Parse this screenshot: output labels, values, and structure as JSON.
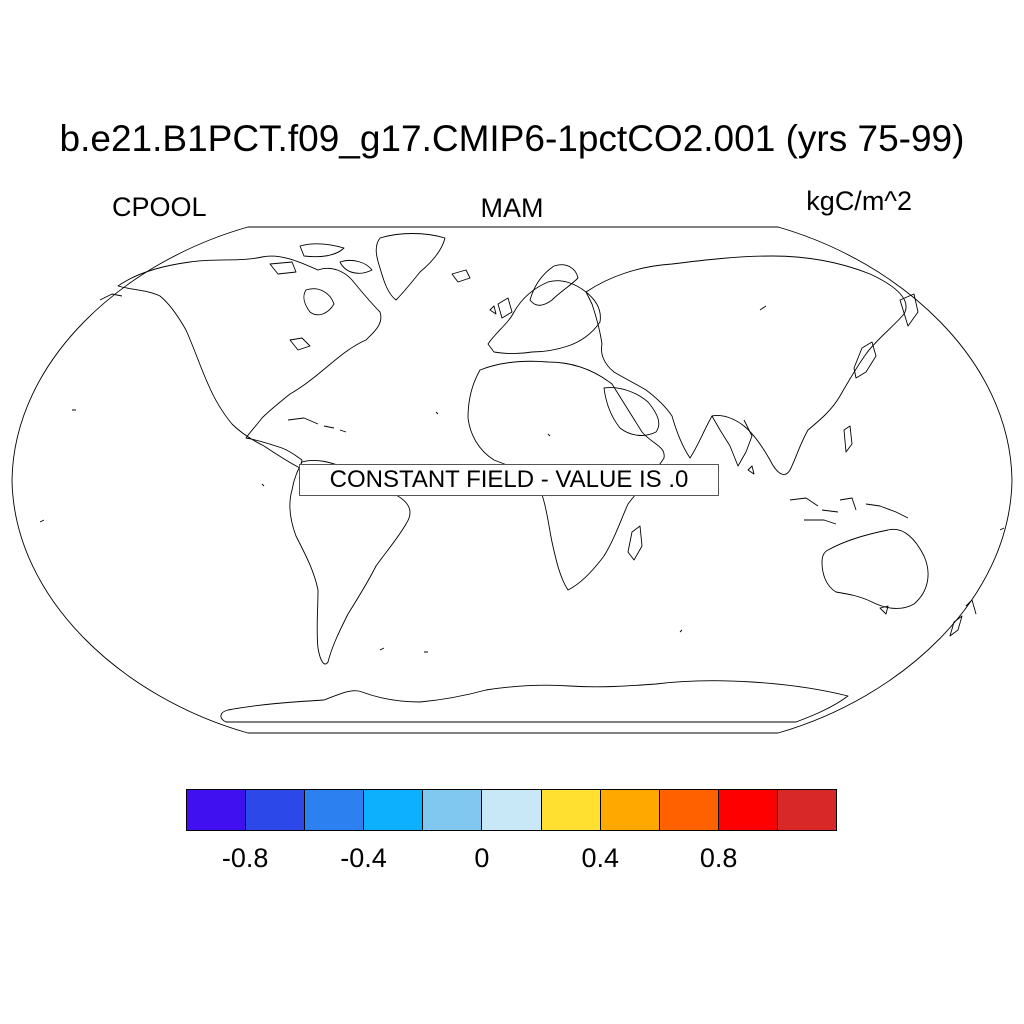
{
  "map": {
    "title": "b.e21.B1PCT.f09_g17.CMIP6-1pctCO2.001 (yrs 75-99)",
    "variable": "CPOOL",
    "season": "MAM",
    "units": "kgC/m^2",
    "projection": "Robinson",
    "notice": "CONSTANT FIELD - VALUE IS .0"
  },
  "colorbar": {
    "colors": [
      "#4010f0",
      "#2c48e8",
      "#2c80f0",
      "#0cb0fc",
      "#80c8f0",
      "#c8e8f8",
      "#ffe030",
      "#ffa800",
      "#ff6000",
      "#ff0000",
      "#d82828"
    ],
    "labels": [
      {
        "text": "-0.8",
        "boundary": 1
      },
      {
        "text": "-0.4",
        "boundary": 3
      },
      {
        "text": "0",
        "boundary": 5
      },
      {
        "text": "0.4",
        "boundary": 7
      },
      {
        "text": "0.8",
        "boundary": 9
      }
    ]
  }
}
